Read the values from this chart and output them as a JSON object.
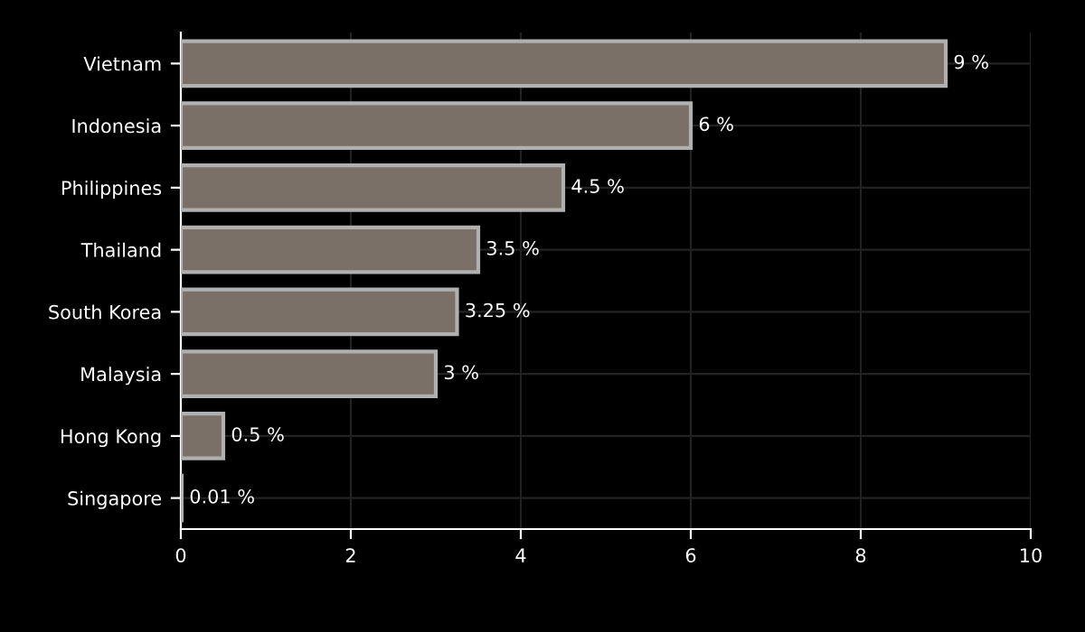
{
  "chart_data": {
    "type": "bar",
    "orientation": "horizontal",
    "categories": [
      "Vietnam",
      "Indonesia",
      "Philippines",
      "Thailand",
      "South Korea",
      "Malaysia",
      "Hong Kong",
      "Singapore"
    ],
    "values": [
      9,
      6,
      4.5,
      3.5,
      3.25,
      3,
      0.5,
      0.01
    ],
    "value_labels": [
      "9 %",
      "6 %",
      "4.5 %",
      "3.5 %",
      "3.25 %",
      "3 %",
      "0.5 %",
      "0.01 %"
    ],
    "color": "#7a7068",
    "xlim": [
      0,
      10
    ],
    "xticks": [
      0,
      2,
      4,
      6,
      8,
      10
    ],
    "grid": true
  }
}
